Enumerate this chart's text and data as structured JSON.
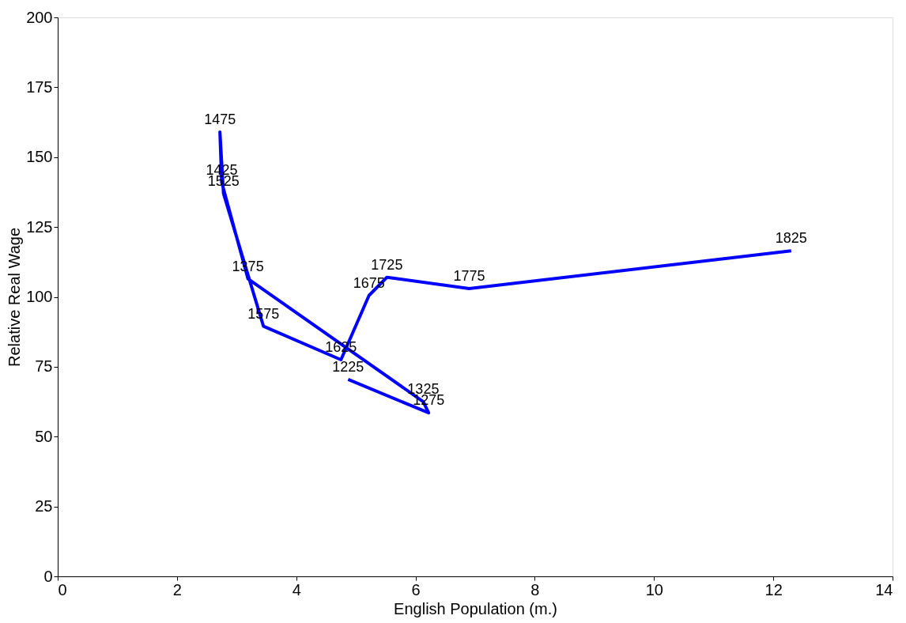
{
  "chart_data": {
    "type": "line",
    "xlabel": "English Population (m.)",
    "ylabel": "Relative Real Wage",
    "x": [
      4.87,
      6.22,
      6.13,
      3.19,
      2.75,
      2.72,
      2.78,
      3.45,
      4.75,
      5.22,
      5.52,
      6.9,
      12.3
    ],
    "series": [
      {
        "color": "#0000ff",
        "values": [
          70.5,
          58.5,
          62.5,
          106.5,
          141,
          159,
          137,
          89.5,
          77.5,
          100.5,
          107,
          103,
          116.5
        ]
      }
    ],
    "annotations": [
      {
        "text": "1225",
        "x": 4.87,
        "y": 70.5
      },
      {
        "text": "1275",
        "x": 6.22,
        "y": 58.5
      },
      {
        "text": "1325",
        "x": 6.13,
        "y": 62.5
      },
      {
        "text": "1375",
        "x": 3.19,
        "y": 106.5
      },
      {
        "text": "1425",
        "x": 2.75,
        "y": 141
      },
      {
        "text": "1475",
        "x": 2.72,
        "y": 159
      },
      {
        "text": "1525",
        "x": 2.78,
        "y": 137
      },
      {
        "text": "1575",
        "x": 3.45,
        "y": 89.5
      },
      {
        "text": "1625",
        "x": 4.75,
        "y": 77.5
      },
      {
        "text": "1675",
        "x": 5.22,
        "y": 100.5
      },
      {
        "text": "1725",
        "x": 5.52,
        "y": 107
      },
      {
        "text": "1775",
        "x": 6.9,
        "y": 103
      },
      {
        "text": "1825",
        "x": 12.3,
        "y": 116.5
      }
    ],
    "xlim": [
      0,
      14
    ],
    "xticks": [
      0,
      2,
      4,
      6,
      8,
      10,
      12,
      14
    ],
    "ylim": [
      0,
      200
    ],
    "yticks": [
      0,
      25,
      50,
      75,
      100,
      125,
      150,
      175,
      200
    ],
    "marker": "none",
    "line_style": "solid"
  }
}
